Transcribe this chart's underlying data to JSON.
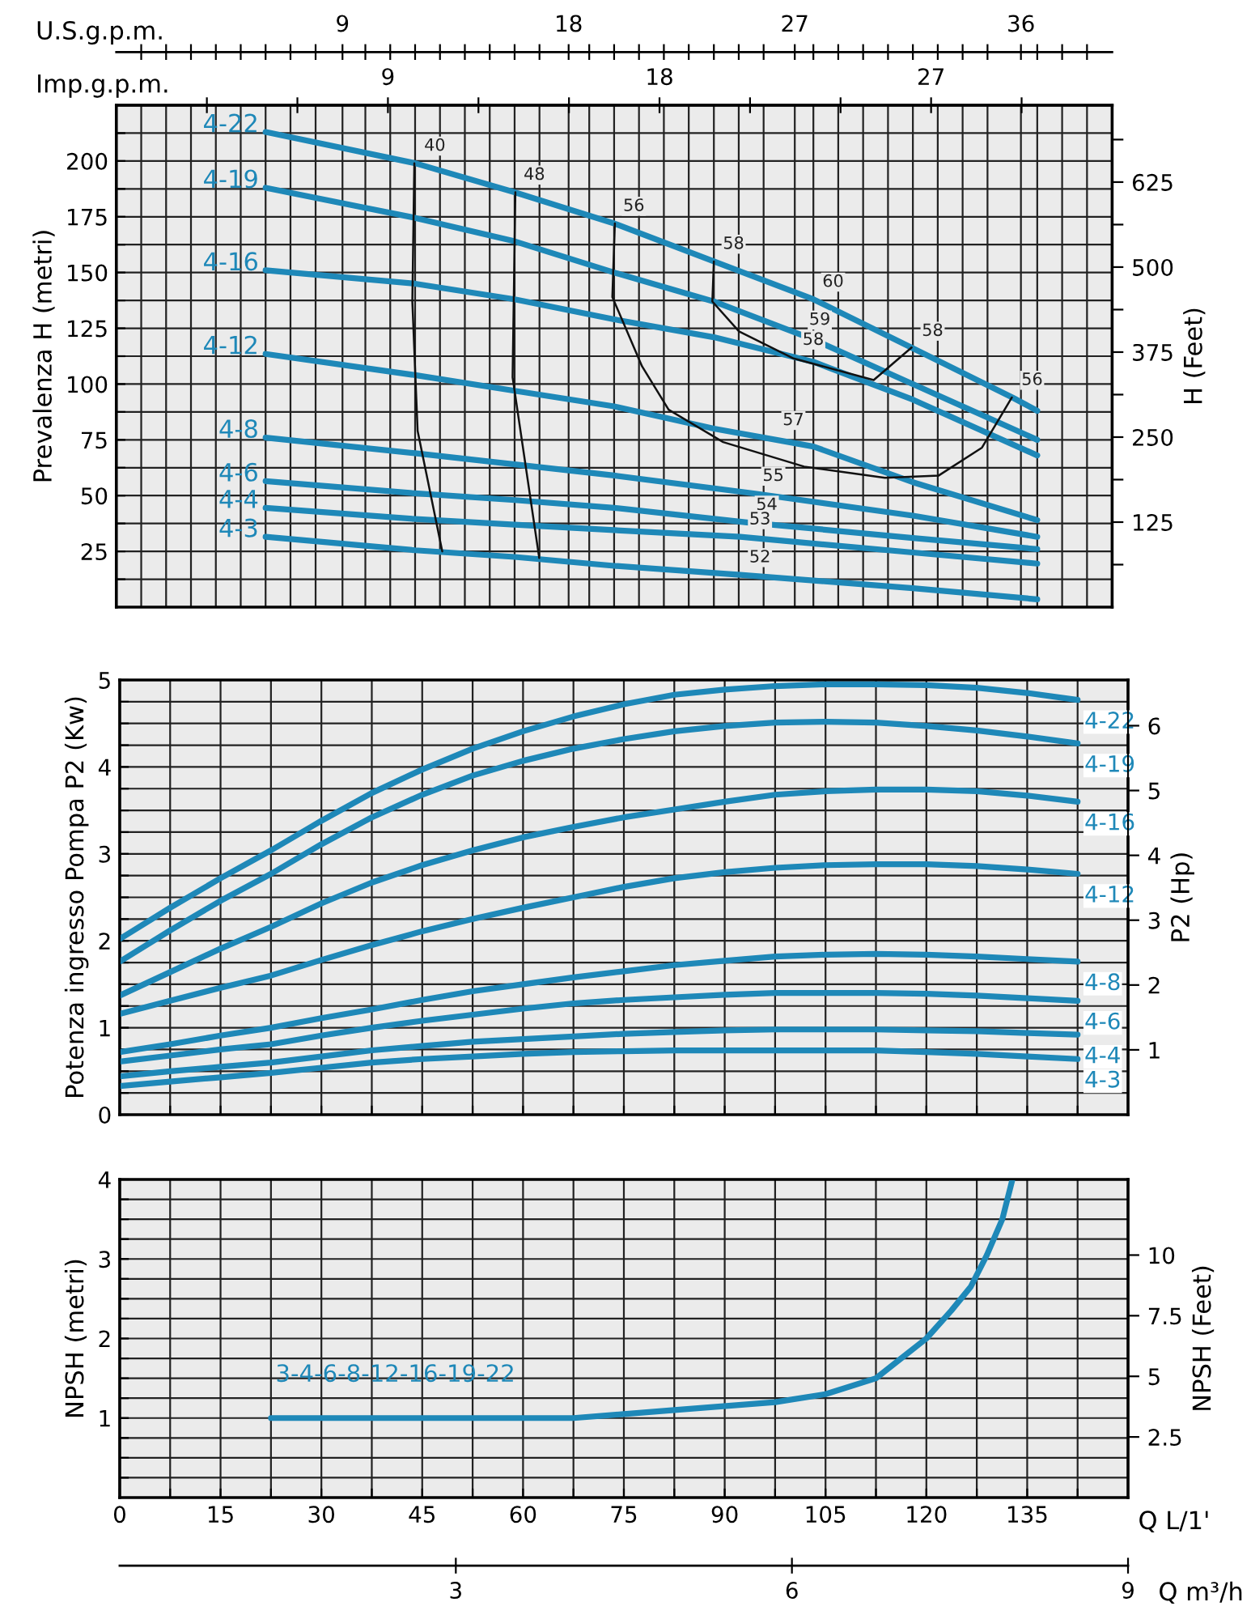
{
  "chart_data": [
    {
      "type": "line",
      "xlabel": "U.S.g.p.m.",
      "x2label": "Imp.g.p.m.",
      "ylabel": "Prevalenza H (metri)",
      "y2label": "H (Feet)",
      "grid": true,
      "xlim": [
        0,
        39.63
      ],
      "xticks": [
        {
          "value": 0.99,
          "label": null
        },
        {
          "value": 1.98,
          "label": null
        },
        {
          "value": 2.97,
          "label": null
        },
        {
          "value": 3.96,
          "label": null
        },
        {
          "value": 4.95,
          "label": null
        },
        {
          "value": 5.94,
          "label": null
        },
        {
          "value": 6.93,
          "label": null
        },
        {
          "value": 7.93,
          "label": null
        },
        9,
        {
          "value": 9.91,
          "label": null
        },
        {
          "value": 10.9,
          "label": null
        },
        {
          "value": 11.89,
          "label": null
        },
        {
          "value": 12.88,
          "label": null
        },
        {
          "value": 13.87,
          "label": null
        },
        {
          "value": 14.86,
          "label": null
        },
        {
          "value": 15.85,
          "label": null
        },
        {
          "value": 16.84,
          "label": null
        },
        18,
        {
          "value": 18.82,
          "label": null
        },
        {
          "value": 19.81,
          "label": null
        },
        {
          "value": 20.8,
          "label": null
        },
        {
          "value": 21.79,
          "label": null
        },
        {
          "value": 22.78,
          "label": null
        },
        {
          "value": 23.78,
          "label": null
        },
        {
          "value": 24.77,
          "label": null
        },
        {
          "value": 25.76,
          "label": null
        },
        27,
        {
          "value": 27.74,
          "label": null
        },
        {
          "value": 28.73,
          "label": null
        },
        {
          "value": 29.72,
          "label": null
        },
        {
          "value": 30.71,
          "label": null
        },
        {
          "value": 31.7,
          "label": null
        },
        {
          "value": 32.69,
          "label": null
        },
        {
          "value": 33.68,
          "label": null
        },
        {
          "value": 34.67,
          "label": null
        },
        36,
        {
          "value": 36.65,
          "label": null
        },
        {
          "value": 37.64,
          "label": null
        },
        {
          "value": 38.63,
          "label": null
        }
      ],
      "ylim": [
        0,
        225
      ],
      "yticks": [
        {
          "value": 12.5,
          "label": null
        },
        25,
        {
          "value": 37.5,
          "label": null
        },
        50,
        {
          "value": 62.5,
          "label": null
        },
        75,
        {
          "value": 87.5,
          "label": null
        },
        100,
        {
          "value": 112.5,
          "label": null
        },
        125,
        {
          "value": 137.5,
          "label": null
        },
        150,
        {
          "value": 162.5,
          "label": null
        },
        175,
        {
          "value": 187.5,
          "label": null
        },
        200,
        {
          "value": 212.5,
          "label": null
        }
      ],
      "y2lim": [
        0,
        738
      ],
      "y2ticks": [
        {
          "value": 62.5,
          "label": null
        },
        125,
        {
          "value": 187.5,
          "label": null
        },
        250,
        {
          "value": 312.5,
          "label": null
        },
        375,
        {
          "value": 437.5,
          "label": null
        },
        500,
        {
          "value": 562.5,
          "label": null
        },
        625,
        {
          "value": 687.5,
          "label": null
        }
      ],
      "x2lim": [
        0,
        33.0
      ],
      "x2ticks": [
        {
          "value": 3,
          "label": null
        },
        {
          "value": 6,
          "label": null
        },
        9,
        {
          "value": 12,
          "label": null
        },
        {
          "value": 15,
          "label": null
        },
        18,
        {
          "value": 21,
          "label": null
        },
        {
          "value": 24,
          "label": null
        },
        27,
        {
          "value": 30,
          "label": null
        }
      ],
      "series": [
        {
          "name": "4-22",
          "color": "#1e88b8",
          "x": [
            5.94,
            11.89,
            15.85,
            19.81,
            23.78,
            27.74,
            31.7,
            35.66,
            36.65
          ],
          "values": [
            213,
            199,
            186,
            172,
            155,
            138,
            116,
            94,
            88
          ]
        },
        {
          "name": "4-19",
          "color": "#1e88b8",
          "x": [
            5.94,
            11.89,
            15.85,
            19.81,
            23.78,
            27.74,
            31.7,
            36.65
          ],
          "values": [
            188,
            174.5,
            164,
            150,
            137,
            120,
            100,
            75
          ]
        },
        {
          "name": "4-16",
          "color": "#1e88b8",
          "x": [
            5.94,
            11.89,
            15.85,
            19.81,
            23.78,
            27.74,
            31.7,
            36.65
          ],
          "values": [
            151,
            145,
            138,
            129,
            121,
            110,
            93,
            68
          ]
        },
        {
          "name": "4-12",
          "color": "#1e88b8",
          "x": [
            5.94,
            11.89,
            15.85,
            19.81,
            23.78,
            27.74,
            31.7,
            36.65
          ],
          "values": [
            113.5,
            104,
            97,
            90,
            80,
            72,
            56,
            39
          ]
        },
        {
          "name": "4-8",
          "color": "#1e88b8",
          "x": [
            5.94,
            11.89,
            15.85,
            19.81,
            25.36,
            31.7,
            36.65
          ],
          "values": [
            76,
            69,
            64,
            59,
            51,
            41,
            31.5
          ]
        },
        {
          "name": "4-6",
          "color": "#1e88b8",
          "x": [
            5.94,
            11.89,
            15.85,
            19.81,
            25.1,
            31.7,
            36.65
          ],
          "values": [
            56.5,
            51,
            48,
            44.5,
            38,
            31,
            26
          ]
        },
        {
          "name": "4-4",
          "color": "#1e88b8",
          "x": [
            5.94,
            11.89,
            15.85,
            19.81,
            24.83,
            31.7,
            36.65
          ],
          "values": [
            44.5,
            39.5,
            37,
            34.5,
            31.5,
            24.5,
            19.5
          ]
        },
        {
          "name": "4-3",
          "color": "#1e88b8",
          "x": [
            5.94,
            11.89,
            15.85,
            19.81,
            24.83,
            31.7,
            36.65
          ],
          "values": [
            31.5,
            25.5,
            22.5,
            18.5,
            14.5,
            8.5,
            3.5
          ]
        },
        {
          "color": "#111111",
          "x": [
            11.86,
            11.78,
            11.99,
            12.97
          ],
          "values": [
            199,
            137,
            79,
            25
          ]
        },
        {
          "color": "#111111",
          "x": [
            15.88,
            15.77,
            16.83
          ],
          "values": [
            186,
            103,
            22
          ]
        },
        {
          "color": "#111111",
          "x": [
            19.84,
            19.74,
            20.92,
            21.98,
            24.15,
            27.37,
            30.59,
            32.73,
            34.45,
            35.64
          ],
          "values": [
            172,
            139,
            108,
            88.5,
            74,
            63,
            58,
            59,
            71.5,
            94
          ]
        },
        {
          "color": "#111111",
          "x": [
            23.78,
            23.72,
            24.78,
            26.95,
            30.14,
            31.65
          ],
          "values": [
            155,
            137,
            123.6,
            111.5,
            101.8,
            116.4
          ]
        }
      ],
      "annotations": [
        {
          "text": "40",
          "x": 11.89,
          "y": 199
        },
        {
          "text": "48",
          "x": 15.85,
          "y": 186
        },
        {
          "text": "56",
          "x": 19.81,
          "y": 172
        },
        {
          "text": "58",
          "x": 23.78,
          "y": 155
        },
        {
          "text": "60",
          "x": 27.74,
          "y": 138
        },
        {
          "text": "59",
          "x": 27.21,
          "y": 121
        },
        {
          "text": "58",
          "x": 26.95,
          "y": 112
        },
        {
          "text": "58",
          "x": 31.7,
          "y": 116
        },
        {
          "text": "56",
          "x": 35.66,
          "y": 94
        },
        {
          "text": "57",
          "x": 26.16,
          "y": 76
        },
        {
          "text": "55",
          "x": 25.36,
          "y": 51
        },
        {
          "text": "54",
          "x": 25.1,
          "y": 38
        },
        {
          "text": "53",
          "x": 24.83,
          "y": 31.5
        },
        {
          "text": "52",
          "x": 24.83,
          "y": 14.5
        }
      ]
    },
    {
      "type": "line",
      "ylabel": "Potenza ingresso Pompa P2 (Kw)",
      "y2label": "P2 (Hp)",
      "grid": true,
      "categories": [
        null,
        null,
        null,
        null,
        null,
        null,
        null,
        null,
        null,
        null,
        null,
        null,
        null,
        null,
        null,
        null,
        null,
        null,
        null,
        null
      ],
      "ylim": [
        0,
        5
      ],
      "yticks": [
        0,
        {
          "value": 0.25,
          "label": null
        },
        {
          "value": 0.5,
          "label": null
        },
        {
          "value": 0.75,
          "label": null
        },
        1,
        {
          "value": 1.25,
          "label": null
        },
        {
          "value": 1.5,
          "label": null
        },
        {
          "value": 1.75,
          "label": null
        },
        2,
        {
          "value": 2.25,
          "label": null
        },
        {
          "value": 2.5,
          "label": null
        },
        {
          "value": 2.75,
          "label": null
        },
        3,
        {
          "value": 3.25,
          "label": null
        },
        {
          "value": 3.5,
          "label": null
        },
        {
          "value": 3.75,
          "label": null
        },
        4,
        {
          "value": 4.25,
          "label": null
        },
        {
          "value": 4.5,
          "label": null
        },
        {
          "value": 4.75,
          "label": null
        },
        5
      ],
      "y2lim": [
        0,
        6.705
      ],
      "y2ticks": [
        1,
        2,
        3,
        4,
        5,
        6
      ],
      "series": [
        {
          "name": "4-22",
          "color": "#1e88b8",
          "values": [
            2.02,
            2.38,
            2.72,
            3.04,
            3.38,
            3.7,
            3.97,
            4.21,
            4.41,
            4.58,
            4.72,
            4.83,
            4.89,
            4.93,
            4.95,
            4.95,
            4.94,
            4.91,
            4.85,
            4.77
          ]
        },
        {
          "name": "4-19",
          "color": "#1e88b8",
          "values": [
            1.76,
            2.12,
            2.46,
            2.77,
            3.11,
            3.42,
            3.68,
            3.9,
            4.07,
            4.21,
            4.32,
            4.41,
            4.47,
            4.51,
            4.52,
            4.51,
            4.47,
            4.42,
            4.35,
            4.27
          ]
        },
        {
          "name": "4-16",
          "color": "#1e88b8",
          "values": [
            1.37,
            1.64,
            1.91,
            2.16,
            2.43,
            2.67,
            2.87,
            3.04,
            3.19,
            3.31,
            3.42,
            3.51,
            3.6,
            3.68,
            3.72,
            3.74,
            3.74,
            3.72,
            3.67,
            3.6
          ]
        },
        {
          "name": "4-12",
          "color": "#1e88b8",
          "values": [
            1.16,
            1.31,
            1.46,
            1.6,
            1.78,
            1.95,
            2.11,
            2.25,
            2.38,
            2.5,
            2.62,
            2.72,
            2.79,
            2.84,
            2.87,
            2.88,
            2.88,
            2.86,
            2.82,
            2.77
          ]
        },
        {
          "name": "4-8",
          "color": "#1e88b8",
          "values": [
            0.72,
            0.81,
            0.91,
            1.0,
            1.11,
            1.21,
            1.32,
            1.42,
            1.5,
            1.58,
            1.65,
            1.72,
            1.77,
            1.82,
            1.84,
            1.85,
            1.84,
            1.82,
            1.79,
            1.76
          ]
        },
        {
          "name": "4-6",
          "color": "#1e88b8",
          "values": [
            0.61,
            0.68,
            0.75,
            0.81,
            0.91,
            1.0,
            1.08,
            1.15,
            1.22,
            1.28,
            1.32,
            1.35,
            1.38,
            1.4,
            1.4,
            1.4,
            1.39,
            1.37,
            1.34,
            1.31
          ]
        },
        {
          "name": "4-4",
          "color": "#1e88b8",
          "values": [
            0.44,
            0.5,
            0.55,
            0.6,
            0.67,
            0.74,
            0.79,
            0.84,
            0.87,
            0.9,
            0.93,
            0.95,
            0.97,
            0.98,
            0.98,
            0.98,
            0.97,
            0.96,
            0.94,
            0.92
          ]
        },
        {
          "name": "4-3",
          "color": "#1e88b8",
          "values": [
            0.33,
            0.38,
            0.43,
            0.48,
            0.54,
            0.6,
            0.64,
            0.67,
            0.7,
            0.72,
            0.73,
            0.74,
            0.74,
            0.74,
            0.74,
            0.74,
            0.72,
            0.7,
            0.67,
            0.64
          ]
        }
      ]
    },
    {
      "type": "line",
      "xlabel": "Q L/1'",
      "ylabel": "NPSH (metri)",
      "y2label": "NPSH (Feet)",
      "x2label": "Q m³/h",
      "grid": true,
      "xlim": [
        0,
        150
      ],
      "xticks": [
        0,
        {
          "value": 7.5,
          "label": null
        },
        15,
        {
          "value": 22.5,
          "label": null
        },
        30,
        {
          "value": 37.5,
          "label": null
        },
        45,
        {
          "value": 52.5,
          "label": null
        },
        60,
        {
          "value": 67.5,
          "label": null
        },
        75,
        {
          "value": 82.5,
          "label": null
        },
        90,
        {
          "value": 97.5,
          "label": null
        },
        105,
        {
          "value": 112.5,
          "label": null
        },
        120,
        {
          "value": 127.5,
          "label": null
        },
        135,
        {
          "value": 142.5,
          "label": null
        }
      ],
      "ylim": [
        0,
        4
      ],
      "yticks": [
        {
          "value": 0.25,
          "label": null
        },
        {
          "value": 0.5,
          "label": null
        },
        {
          "value": 0.75,
          "label": null
        },
        1,
        {
          "value": 1.25,
          "label": null
        },
        {
          "value": 1.5,
          "label": null
        },
        {
          "value": 1.75,
          "label": null
        },
        2,
        {
          "value": 2.25,
          "label": null
        },
        {
          "value": 2.5,
          "label": null
        },
        {
          "value": 2.75,
          "label": null
        },
        3,
        {
          "value": 3.25,
          "label": null
        },
        {
          "value": 3.5,
          "label": null
        },
        {
          "value": 3.75,
          "label": null
        },
        4
      ],
      "y2lim": [
        0,
        13.12
      ],
      "y2ticks": [
        2.5,
        5,
        7.5,
        10
      ],
      "x2lim": [
        0,
        9
      ],
      "x2ticks": [
        3,
        6,
        9
      ],
      "series": [
        {
          "name": "3-4-6-8-12-16-19-22",
          "color": "#1e88b8",
          "x": [
            22.5,
            37.5,
            52.5,
            67.5,
            75,
            82.5,
            97.5,
            105,
            112.5,
            117,
            120,
            123.7,
            126.6,
            129,
            131.3,
            132.8
          ],
          "values": [
            1.0,
            1.0,
            1.0,
            1.0,
            1.05,
            1.1,
            1.2,
            1.3,
            1.5,
            1.8,
            2.0,
            2.35,
            2.65,
            3.05,
            3.5,
            4.0
          ]
        }
      ]
    }
  ]
}
